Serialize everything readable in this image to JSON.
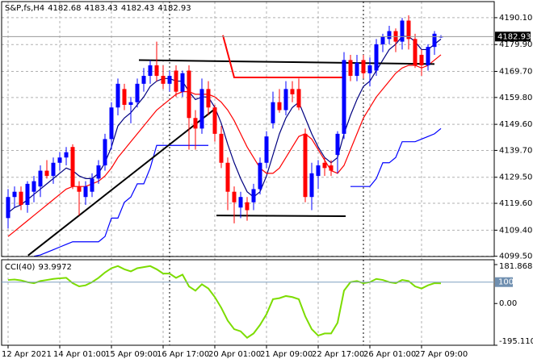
{
  "chart_data": {
    "type": "candlestick",
    "symbol": "S&P,fs,H4",
    "categories": [
      "12 Apr 2021",
      null,
      null,
      null,
      null,
      null,
      null,
      null,
      "14 Apr 01:00",
      null,
      null,
      null,
      null,
      null,
      null,
      null,
      "15 Apr 09:00",
      null,
      null,
      null,
      null,
      null,
      null,
      null,
      "16 Apr 17:00",
      null,
      null,
      null,
      null,
      null,
      null,
      null,
      "20 Apr 01:00",
      null,
      null,
      null,
      null,
      null,
      null,
      null,
      "21 Apr 09:00",
      null,
      null,
      null,
      null,
      null,
      null,
      null,
      "22 Apr 17:00",
      null,
      null,
      null,
      null,
      null,
      null,
      null,
      "26 Apr 01:00",
      null,
      null,
      null,
      null,
      null,
      null,
      null,
      "27 Apr 09:00",
      null,
      null,
      null
    ],
    "candles": [
      [
        4114,
        4125,
        4110,
        4122
      ],
      [
        4122,
        4126,
        4118,
        4124
      ],
      [
        4124,
        4126,
        4117,
        4119
      ],
      [
        4119,
        4128,
        4116,
        4127
      ],
      [
        4124,
        4130,
        4120,
        4128
      ],
      [
        4126,
        4134,
        4122,
        4132
      ],
      [
        4132,
        4136,
        4129,
        4130
      ],
      [
        4130,
        4137,
        4127,
        4135
      ],
      [
        4135,
        4139,
        4132,
        4137
      ],
      [
        4137,
        4141,
        4134,
        4139
      ],
      [
        4141,
        4142,
        4125,
        4126
      ],
      [
        4126,
        4128,
        4115,
        4124
      ],
      [
        4122,
        4128,
        4119,
        4126
      ],
      [
        4124,
        4131,
        4122,
        4129
      ],
      [
        4129,
        4136,
        4127,
        4134
      ],
      [
        4134,
        4146,
        4132,
        4144
      ],
      [
        4144,
        4158,
        4140,
        4156
      ],
      [
        4156,
        4167,
        4153,
        4165
      ],
      [
        4163,
        4165,
        4155,
        4157
      ],
      [
        4157,
        4160,
        4150,
        4158
      ],
      [
        4158,
        4167,
        4156,
        4165
      ],
      [
        4165,
        4171,
        4162,
        4168
      ],
      [
        4168,
        4174,
        4165,
        4172
      ],
      [
        4172,
        4181,
        4166,
        4168
      ],
      [
        4168,
        4172,
        4163,
        4165
      ],
      [
        4165,
        4170,
        4162,
        4168
      ],
      [
        4170,
        4172,
        4160,
        4162
      ],
      [
        4162,
        4170,
        4160,
        4169
      ],
      [
        4170,
        4172,
        4140,
        4152
      ],
      [
        4152,
        4155,
        4140,
        4148
      ],
      [
        4148,
        4167,
        4146,
        4163
      ],
      [
        4163,
        4166,
        4153,
        4156
      ],
      [
        4156,
        4157,
        4143,
        4146
      ],
      [
        4146,
        4149,
        4133,
        4135
      ],
      [
        4135,
        4137,
        4117,
        4124
      ],
      [
        4124,
        4126,
        4112,
        4120
      ],
      [
        4118,
        4124,
        4114,
        4122
      ],
      [
        4120,
        4122,
        4113,
        4117
      ],
      [
        4120,
        4127,
        4117,
        4125
      ],
      [
        4125,
        4137,
        4123,
        4135
      ],
      [
        4135,
        4147,
        4133,
        4145
      ],
      [
        4150,
        4162,
        4148,
        4158
      ],
      [
        4158,
        4163,
        4154,
        4155
      ],
      [
        4155,
        4166,
        4153,
        4163
      ],
      [
        4163,
        4166,
        4158,
        4161
      ],
      [
        4163,
        4167,
        4155,
        4156
      ],
      [
        4146,
        4148,
        4120,
        4122
      ],
      [
        4122,
        4135,
        4117,
        4131
      ],
      [
        4130,
        4136,
        4125,
        4134
      ],
      [
        4135,
        4137,
        4130,
        4133
      ],
      [
        4134,
        4136,
        4130,
        4132
      ],
      [
        4138,
        4147,
        4131,
        4146
      ],
      [
        4146,
        4177,
        4144,
        4174
      ],
      [
        4174,
        4176,
        4166,
        4168
      ],
      [
        4168,
        4176,
        4166,
        4173
      ],
      [
        4174,
        4176,
        4167,
        4169
      ],
      [
        4169,
        4175,
        4164,
        4172
      ],
      [
        4170,
        4182,
        4168,
        4180
      ],
      [
        4180,
        4184,
        4177,
        4183
      ],
      [
        4182,
        4187,
        4180,
        4185
      ],
      [
        4185,
        4186,
        4177,
        4181
      ],
      [
        4181,
        4190,
        4178,
        4189
      ],
      [
        4189,
        4191,
        4178,
        4182
      ],
      [
        4182,
        4184,
        4171,
        4172
      ],
      [
        4176,
        4178,
        4168,
        4172
      ],
      [
        4172,
        4180,
        4170,
        4179
      ],
      [
        4179,
        4185,
        4176,
        4184
      ],
      [
        4182.68,
        4183.43,
        4182.43,
        4182.93
      ]
    ],
    "ylim": [
      4099.4,
      4196.2
    ],
    "yticks": [
      {
        "value": 4190.1,
        "label": "4190.10"
      },
      {
        "value": 4179.9,
        "label": "4179.90"
      },
      {
        "value": 4169.7,
        "label": "4169.70"
      },
      {
        "value": 4159.8,
        "label": "4159.80"
      },
      {
        "value": 4149.6,
        "label": "4149.60"
      },
      {
        "value": 4139.7,
        "label": "4139.70"
      },
      {
        "value": 4129.5,
        "label": "4129.50"
      },
      {
        "value": 4119.6,
        "label": "4119.60"
      },
      {
        "value": 4109.4,
        "label": "4109.40"
      },
      {
        "value": 4099.5,
        "label": "4099.50"
      }
    ],
    "grid": true,
    "bull_color": "#0000ff",
    "bear_color": "#ff0000",
    "overlays": [
      {
        "color": "#000080",
        "values": [
          4116,
          4118,
          4119,
          4121,
          4123,
          4125,
          4127,
          4129,
          4131,
          4133,
          4132,
          4130,
          4129,
          4129,
          4131,
          4135,
          4141,
          4149,
          4152,
          4154,
          4157,
          4160,
          4164,
          4166,
          4167,
          4167,
          4166,
          4166,
          4162,
          4159,
          4160,
          4160,
          4156,
          4150,
          4142,
          4135,
          4129,
          4124,
          4122,
          4124,
          4130,
          4138,
          4146,
          4152,
          4156,
          4158,
          4152,
          4146,
          4141,
          4137,
          4135,
          4137,
          4146,
          4153,
          4159,
          4164,
          4166,
          4170,
          4174,
          4178,
          4180,
          4183,
          4183,
          4181,
          4178,
          4178,
          4180,
          4182
        ]
      },
      {
        "color": "#ff0000",
        "values": [
          4107,
          4109,
          4111,
          4113,
          4115,
          4117,
          4119,
          4121,
          4123,
          4125,
          4126,
          4126,
          4126,
          4127,
          4128,
          4130,
          4133,
          4137,
          4140,
          4143,
          4146,
          4149,
          4152,
          4155,
          4157,
          4159,
          4161,
          4162,
          4162,
          4161,
          4161,
          4161,
          4160,
          4158,
          4155,
          4151,
          4146,
          4141,
          4137,
          4133,
          4131,
          4131,
          4133,
          4137,
          4141,
          4145,
          4146,
          4144,
          4140,
          4136,
          4132,
          4131,
          4134,
          4140,
          4146,
          4152,
          4156,
          4160,
          4163,
          4166,
          4169,
          4171,
          4172,
          4172,
          4171,
          4172,
          4174,
          4176
        ]
      },
      {
        "color": "#0000ff",
        "values": [
          null,
          null,
          null,
          null,
          4099.5,
          4100,
          4101,
          4102,
          4103,
          4104,
          4105,
          4105,
          4105,
          4105,
          4105,
          4107,
          4114,
          4114,
          4120,
          4122,
          4127,
          4127,
          4133,
          4141.6,
          4141.6,
          4141.6,
          4141.6,
          4141.6,
          4141.6,
          4141.6,
          4141.6,
          4141.6,
          null,
          null,
          null,
          null,
          null,
          null,
          null,
          null,
          null,
          null,
          null,
          null,
          null,
          null,
          null,
          null,
          null,
          null,
          null,
          null,
          null,
          4126,
          4126,
          4126,
          4126,
          4129,
          4135,
          4135,
          4137,
          4143,
          4143,
          4143,
          4144,
          4145,
          4146,
          4148
        ]
      }
    ],
    "objects": [
      {
        "color": "#000000",
        "points": [
          [
            3.1,
            4099.8
          ],
          [
            32.25,
            4155.9
          ]
        ]
      },
      {
        "color": "#000000",
        "points": [
          [
            20.25,
            4174
          ],
          [
            66,
            4172.5
          ]
        ]
      },
      {
        "color": "#000000",
        "points": [
          [
            32.25,
            4115
          ],
          [
            52.25,
            4114.7
          ]
        ]
      },
      {
        "color": "#ff0000",
        "points": [
          [
            33.25,
            4183.4
          ],
          [
            35,
            4167.4
          ],
          [
            52.25,
            4167.4
          ]
        ]
      }
    ],
    "cci": {
      "type": "line",
      "title": "CCI(40)",
      "color": "#7cdc00",
      "values": [
        110,
        112,
        108,
        100,
        95,
        105,
        110,
        115,
        118,
        120,
        95,
        80,
        85,
        100,
        120,
        145,
        165,
        175,
        160,
        150,
        165,
        170,
        175,
        160,
        140,
        140,
        120,
        135,
        80,
        60,
        90,
        70,
        30,
        -20,
        -80,
        -120,
        -130,
        -160,
        -140,
        -100,
        -50,
        20,
        25,
        35,
        30,
        20,
        -60,
        -120,
        -150,
        -140,
        -140,
        -90,
        60,
        100,
        105,
        95,
        100,
        115,
        110,
        100,
        95,
        110,
        105,
        80,
        70,
        85,
        95,
        93.9972
      ],
      "ylim": [
        -195.1105,
        181.8683
      ],
      "yticks": [
        181.8683,
        {
          "value": 0,
          "label": "0.00"
        },
        -195.1105
      ],
      "level": 100
    }
  }
}
